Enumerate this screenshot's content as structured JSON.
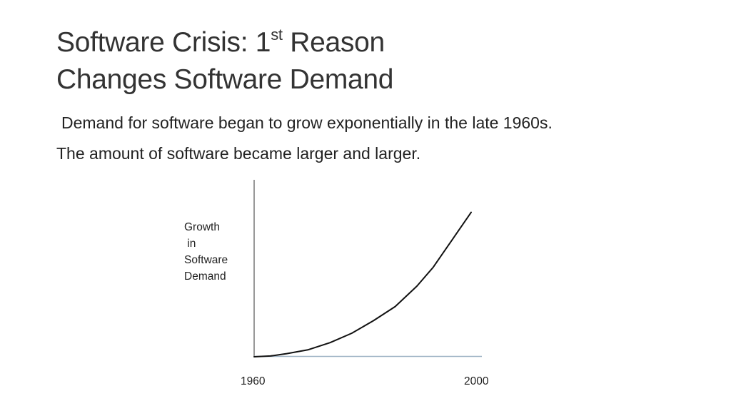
{
  "slide": {
    "title": {
      "line1_main": "Software Crisis:  1",
      "line1_sup": "st",
      "line1_rest": " Reason",
      "line2": "Changes Software Demand"
    },
    "body": [
      "Demand for software began to grow exponentially in the late 1960s.",
      "The amount of software became larger and larger."
    ]
  },
  "chart_data": {
    "type": "line",
    "title": "",
    "ylabel_lines": [
      "Growth",
      " in",
      "Software",
      "Demand"
    ],
    "xlabel": "",
    "x_tick_labels": [
      "1960",
      "2000"
    ],
    "x": [
      1960,
      1963,
      1966,
      1970,
      1974,
      1978,
      1982,
      1986,
      1990,
      1993,
      1995,
      1997,
      1999,
      2000
    ],
    "values": [
      0,
      0.5,
      2,
      4.5,
      9,
      15,
      23,
      32,
      45,
      57,
      67,
      77,
      87,
      92
    ],
    "xlim": [
      1960,
      2000
    ],
    "ylim": [
      0,
      100
    ],
    "grid": false,
    "colors": {
      "line": "#111111",
      "x_axis": "#9eb3c5",
      "y_axis": "#555555"
    }
  }
}
